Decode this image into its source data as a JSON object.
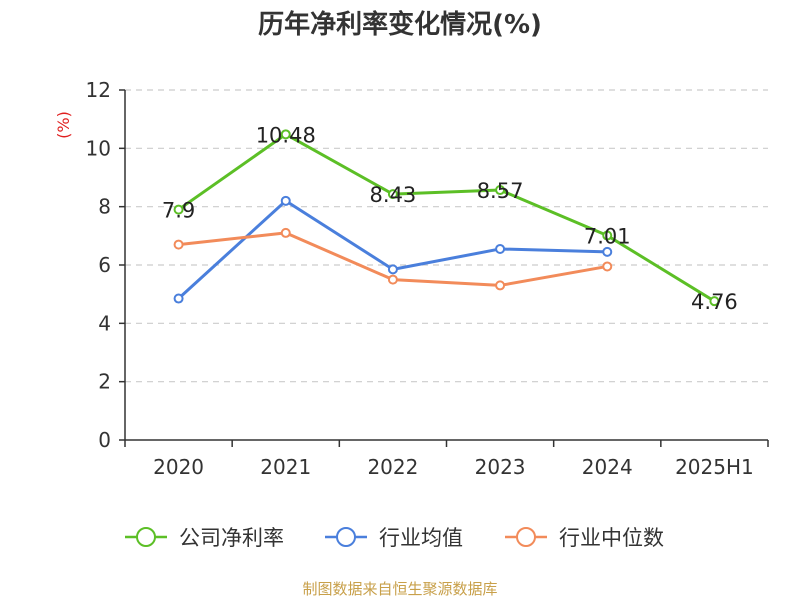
{
  "colors": {
    "source": "#c8a04a",
    "unit": "#e02020",
    "axis": "#333333",
    "grid": "#cccccc"
  },
  "chart_data": {
    "type": "line",
    "title": "历年净利率变化情况(%)",
    "ylabel": "(%)",
    "ylim": [
      0,
      12
    ],
    "yticks": [
      0,
      2,
      4,
      6,
      8,
      10,
      12
    ],
    "categories": [
      "2020",
      "2021",
      "2022",
      "2023",
      "2024",
      "2025H1"
    ],
    "grid": "horizontal dashed",
    "legend_position": "bottom",
    "series": [
      {
        "name": "公司净利率",
        "color": "#5cbf26",
        "values": [
          7.9,
          10.48,
          8.43,
          8.57,
          7.01,
          4.76
        ],
        "labels": [
          "7.9",
          "10.48",
          "8.43",
          "8.57",
          "7.01",
          "4.76"
        ]
      },
      {
        "name": "行业均值",
        "color": "#4a7fdc",
        "values": [
          4.85,
          8.2,
          5.85,
          6.55,
          6.45,
          null
        ]
      },
      {
        "name": "行业中位数",
        "color": "#f28b5a",
        "values": [
          6.7,
          7.1,
          5.5,
          5.3,
          5.95,
          null
        ]
      }
    ]
  },
  "source": "制图数据来自恒生聚源数据库"
}
